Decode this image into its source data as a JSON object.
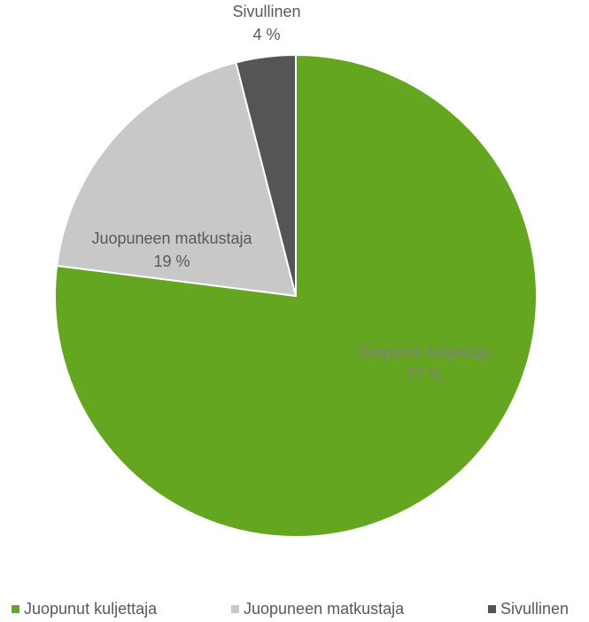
{
  "chart_data": {
    "type": "pie",
    "title": "",
    "slices": [
      {
        "label": "Juopunut kuljettaja",
        "value": 77,
        "value_label": "77 %",
        "color": "#65a620",
        "label_color": "#7f7f7f"
      },
      {
        "label": "Juopuneen matkustaja",
        "value": 19,
        "value_label": "19 %",
        "color": "#c8c8c8",
        "label_color": "#595959"
      },
      {
        "label": "Sivullinen",
        "value": 4,
        "value_label": "4 %",
        "color": "#555555",
        "label_color": "#595959"
      }
    ],
    "legend": {
      "position": "bottom"
    },
    "slice_border_color": "#ffffff"
  }
}
